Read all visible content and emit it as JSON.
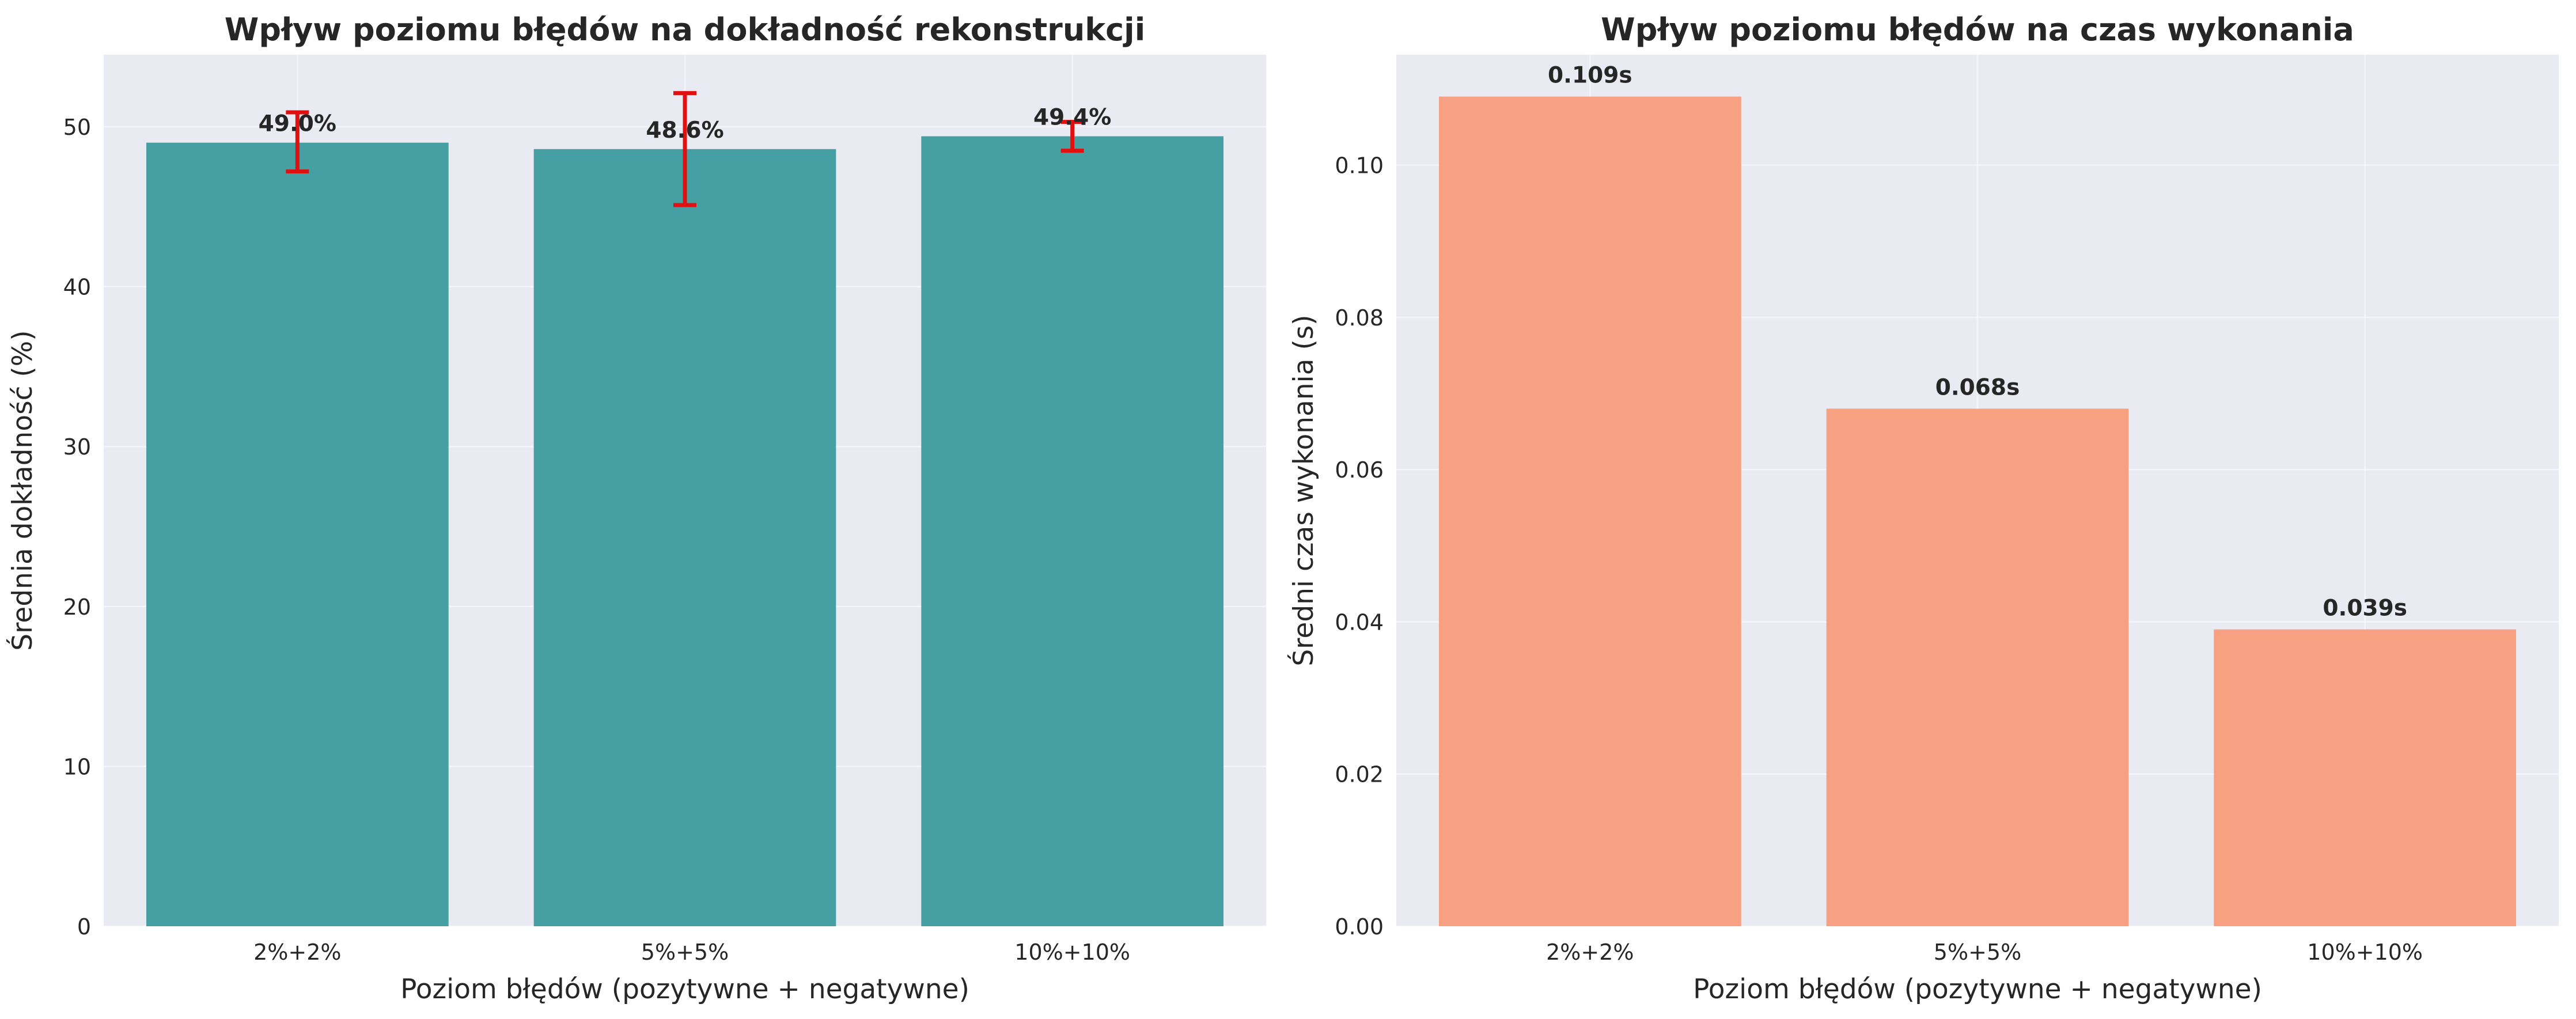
{
  "chart_data": [
    {
      "type": "bar",
      "title": "Wpływ poziomu błędów na dokładność rekonstrukcji",
      "xlabel": "Poziom błędów (pozytywne + negatywne)",
      "ylabel": "Średnia dokładność (%)",
      "categories": [
        "2%+2%",
        "5%+5%",
        "10%+10%"
      ],
      "values": [
        49.0,
        48.6,
        49.4
      ],
      "error_low": [
        47.2,
        45.1,
        48.5
      ],
      "error_high": [
        50.9,
        52.1,
        50.3
      ],
      "data_labels": [
        "49.0%",
        "48.6%",
        "49.4%"
      ],
      "ylim": [
        0,
        54.5
      ],
      "yticks": [
        0,
        10,
        20,
        30,
        40,
        50
      ],
      "ytick_labels": [
        "0",
        "10",
        "20",
        "30",
        "40",
        "50"
      ],
      "bar_color": "#469fa3",
      "error_color": "#e01010",
      "grid": true,
      "background": "#eaeaf2"
    },
    {
      "type": "bar",
      "title": "Wpływ poziomu błędów na czas wykonania",
      "xlabel": "Poziom błędów (pozytywne + negatywne)",
      "ylabel": "Średni czas wykonania (s)",
      "categories": [
        "2%+2%",
        "5%+5%",
        "10%+10%"
      ],
      "values": [
        0.109,
        0.068,
        0.039
      ],
      "data_labels": [
        "0.109s",
        "0.068s",
        "0.039s"
      ],
      "ylim": [
        0,
        0.1145
      ],
      "yticks": [
        0,
        0.02,
        0.04,
        0.06,
        0.08,
        0.1
      ],
      "ytick_labels": [
        "0.00",
        "0.02",
        "0.04",
        "0.06",
        "0.08",
        "0.10"
      ],
      "bar_color": "#f7a182",
      "grid": true,
      "background": "#eaeaf2"
    }
  ]
}
